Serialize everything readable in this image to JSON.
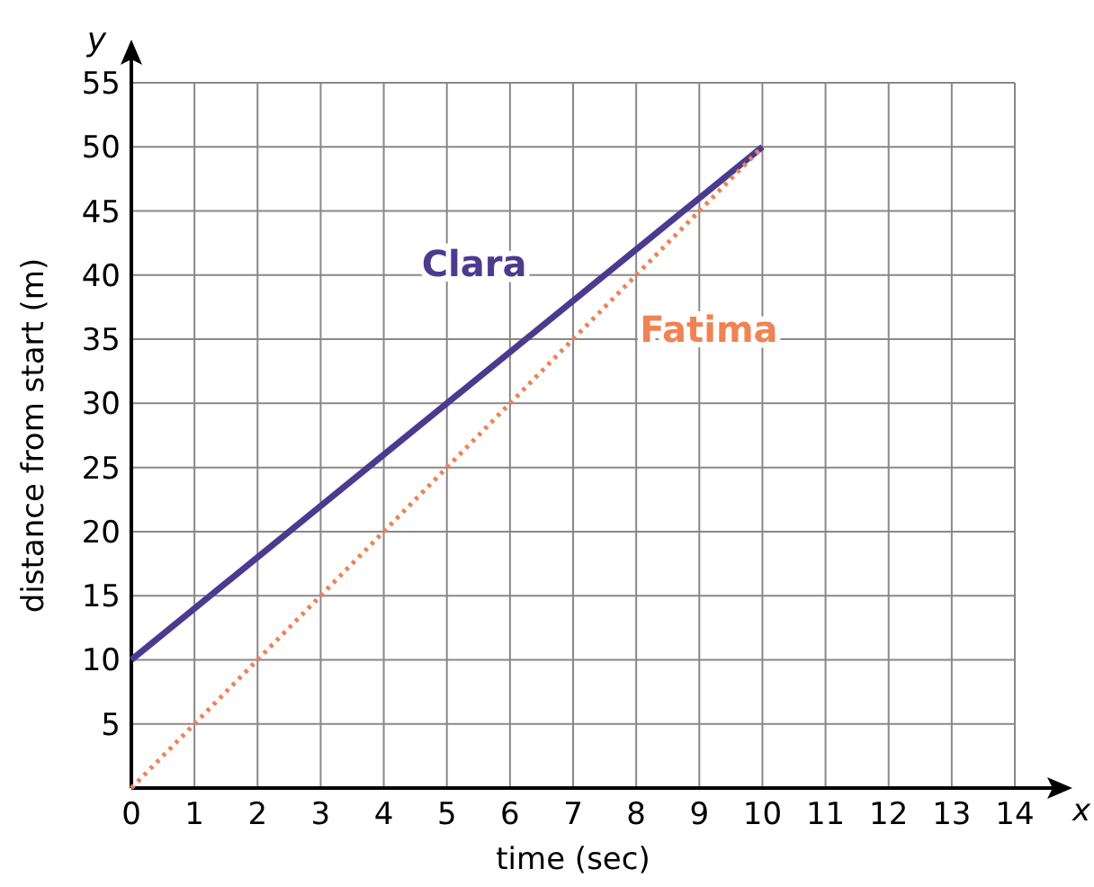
{
  "chart_data": {
    "type": "line",
    "xlabel": "time (sec)",
    "ylabel": "distance from start (m)",
    "annotations": [
      "x",
      "y"
    ],
    "x": [
      0,
      10
    ],
    "series": [
      {
        "name": "Clara",
        "color": "#4b3b8f",
        "values": [
          10,
          50
        ],
        "line_style": "solid"
      },
      {
        "name": "Fatima",
        "color": "#ef8354",
        "values": [
          0,
          50
        ],
        "line_style": "dotted"
      }
    ],
    "xlim": [
      0,
      14
    ],
    "xticks": [
      0,
      1,
      2,
      3,
      4,
      5,
      6,
      7,
      8,
      9,
      10,
      11,
      12,
      13,
      14
    ],
    "ylim": [
      0,
      55
    ],
    "yticks": [
      {
        "value": 0,
        "label": null
      },
      5,
      10,
      15,
      20,
      25,
      30,
      35,
      40,
      45,
      50,
      55
    ],
    "grid": true,
    "legend": false,
    "marker": "none"
  }
}
